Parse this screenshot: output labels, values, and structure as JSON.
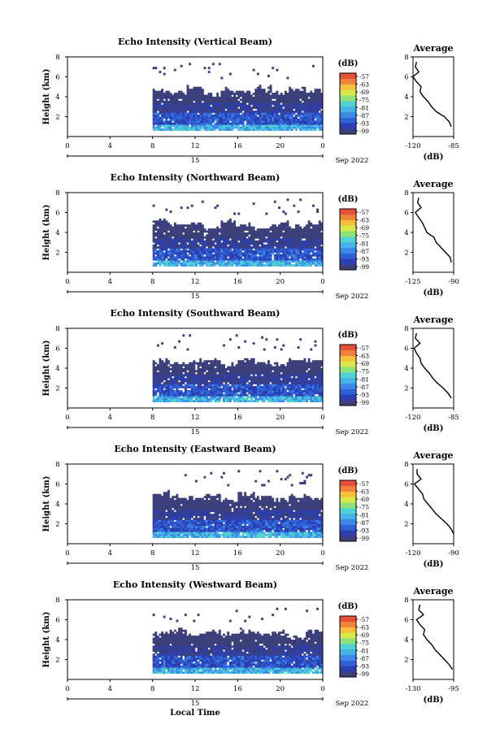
{
  "figure": {
    "xlabel": "Local Time",
    "date_label": "Sep 2022",
    "day_label": "15"
  },
  "chart_data": [
    {
      "type": "heatmap",
      "title": "Echo Intensity (Vertical Beam)",
      "ylabel": "Height (km)",
      "x_ticks": [
        "0",
        "4",
        "8",
        "12",
        "16",
        "20",
        "0"
      ],
      "y_ticks": [
        "2",
        "4",
        "6",
        "8"
      ],
      "xlim": [
        0,
        24
      ],
      "ylim": [
        0,
        8
      ],
      "data_start_hour": 8,
      "top_height_km": [
        4.5,
        4.3,
        4.8,
        4.1,
        4.6,
        4.4,
        4.9,
        4.2,
        4.7,
        4.5
      ],
      "colorbar": {
        "label": "(dB)",
        "ticks": [
          "-57",
          "-63",
          "-69",
          "-75",
          "-81",
          "-87",
          "-93",
          "-99"
        ]
      },
      "profile": {
        "title": "Average",
        "xlabel": "(dB)",
        "x_ticks": [
          "-120",
          "-85"
        ],
        "y_ticks": [
          "2",
          "4",
          "6",
          "8"
        ],
        "height_km": [
          1,
          1.5,
          2,
          2.5,
          3,
          3.5,
          4,
          4.5,
          5,
          5.5,
          6,
          6.5,
          7,
          7.5
        ],
        "value_db": [
          -87,
          -89,
          -93,
          -100,
          -104,
          -107,
          -111,
          -114,
          -113,
          -117,
          -120,
          -115,
          -118,
          -117
        ]
      }
    },
    {
      "type": "heatmap",
      "title": "Echo Intensity (Northward Beam)",
      "ylabel": "Height (km)",
      "x_ticks": [
        "0",
        "4",
        "8",
        "12",
        "16",
        "20",
        "0"
      ],
      "y_ticks": [
        "2",
        "4",
        "6",
        "8"
      ],
      "xlim": [
        0,
        24
      ],
      "ylim": [
        0,
        8
      ],
      "data_start_hour": 8,
      "top_height_km": [
        5.1,
        4.6,
        4.9,
        4.4,
        5.0,
        4.7,
        4.3,
        4.8,
        4.5,
        4.9
      ],
      "colorbar": {
        "label": "(dB)",
        "ticks": [
          "-57",
          "-63",
          "-69",
          "-75",
          "-81",
          "-87",
          "-93",
          "-99"
        ]
      },
      "profile": {
        "title": "Average",
        "xlabel": "(dB)",
        "x_ticks": [
          "-125",
          "-90"
        ],
        "y_ticks": [
          "2",
          "4",
          "6",
          "8"
        ],
        "height_km": [
          1,
          1.5,
          2,
          2.5,
          3,
          3.5,
          4,
          4.5,
          5,
          5.5,
          6,
          6.5,
          7,
          7.5
        ],
        "value_db": [
          -92,
          -93,
          -97,
          -101,
          -105,
          -107,
          -113,
          -115,
          -117,
          -120,
          -123,
          -118,
          -121,
          -120
        ]
      }
    },
    {
      "type": "heatmap",
      "title": "Echo Intensity (Southward Beam)",
      "ylabel": "Height (km)",
      "x_ticks": [
        "0",
        "4",
        "8",
        "12",
        "16",
        "20",
        "0"
      ],
      "y_ticks": [
        "2",
        "4",
        "6",
        "8"
      ],
      "xlim": [
        0,
        24
      ],
      "ylim": [
        0,
        8
      ],
      "data_start_hour": 8,
      "top_height_km": [
        4.8,
        4.4,
        4.6,
        4.9,
        4.2,
        4.7,
        4.5,
        4.3,
        4.8,
        4.6
      ],
      "colorbar": {
        "label": "(dB)",
        "ticks": [
          "-57",
          "-63",
          "-69",
          "-75",
          "-81",
          "-87",
          "-93",
          "-99"
        ]
      },
      "profile": {
        "title": "Average",
        "xlabel": "(dB)",
        "x_ticks": [
          "-120",
          "-85"
        ],
        "y_ticks": [
          "2",
          "4",
          "6",
          "8"
        ],
        "height_km": [
          1,
          1.5,
          2,
          2.5,
          3,
          3.5,
          4,
          4.5,
          5,
          5.5,
          6,
          6.5,
          7,
          7.5
        ],
        "value_db": [
          -87,
          -90,
          -94,
          -99,
          -103,
          -106,
          -110,
          -113,
          -114,
          -117,
          -119,
          -114,
          -118,
          -117
        ]
      }
    },
    {
      "type": "heatmap",
      "title": "Echo Intensity (Eastward Beam)",
      "ylabel": "Height (km)",
      "x_ticks": [
        "0",
        "4",
        "8",
        "12",
        "16",
        "20",
        "0"
      ],
      "y_ticks": [
        "2",
        "4",
        "6",
        "8"
      ],
      "xlim": [
        0,
        24
      ],
      "ylim": [
        0,
        8
      ],
      "data_start_hour": 8,
      "top_height_km": [
        5.0,
        4.7,
        4.5,
        4.8,
        4.4,
        4.9,
        4.6,
        4.3,
        4.7,
        4.5
      ],
      "colorbar": {
        "label": "(dB)",
        "ticks": [
          "-57",
          "-63",
          "-69",
          "-75",
          "-81",
          "-87",
          "-93",
          "-99"
        ]
      },
      "profile": {
        "title": "Average",
        "xlabel": "(dB)",
        "x_ticks": [
          "-120",
          "-90"
        ],
        "y_ticks": [
          "2",
          "4",
          "6",
          "8"
        ],
        "height_km": [
          1,
          1.5,
          2,
          2.5,
          3,
          3.5,
          4,
          4.5,
          5,
          5.5,
          6,
          6.5,
          7,
          7.5
        ],
        "value_db": [
          -90,
          -92,
          -95,
          -99,
          -103,
          -106,
          -109,
          -112,
          -113,
          -116,
          -119,
          -114,
          -117,
          -117
        ]
      }
    },
    {
      "type": "heatmap",
      "title": "Echo Intensity (Westward Beam)",
      "ylabel": "Height (km)",
      "x_ticks": [
        "0",
        "4",
        "8",
        "12",
        "16",
        "20",
        "0"
      ],
      "y_ticks": [
        "2",
        "4",
        "6",
        "8"
      ],
      "xlim": [
        0,
        24
      ],
      "ylim": [
        0,
        8
      ],
      "data_start_hour": 8,
      "top_height_km": [
        4.6,
        4.9,
        4.3,
        4.7,
        4.5,
        4.8,
        4.4,
        4.6,
        4.2,
        4.7
      ],
      "colorbar": {
        "label": "(dB)",
        "ticks": [
          "-57",
          "-63",
          "-69",
          "-75",
          "-81",
          "-87",
          "-93",
          "-99"
        ]
      },
      "profile": {
        "title": "Average",
        "xlabel": "(dB)",
        "x_ticks": [
          "-130",
          "-95"
        ],
        "y_ticks": [
          "2",
          "4",
          "6",
          "8"
        ],
        "height_km": [
          1,
          1.5,
          2,
          2.5,
          3,
          3.5,
          4,
          4.5,
          5,
          5.5,
          6,
          6.5,
          7,
          7.5
        ],
        "value_db": [
          -96,
          -99,
          -103,
          -107,
          -111,
          -114,
          -118,
          -121,
          -120,
          -124,
          -127,
          -121,
          -125,
          -124
        ]
      }
    }
  ],
  "colors": {
    "scale": [
      "#3b3f7a",
      "#2b3fb0",
      "#2f62d8",
      "#3c8ae6",
      "#45b2e8",
      "#4fd2d0",
      "#8fe07a",
      "#d8e84a",
      "#f6c03a",
      "#f0823a",
      "#e8503a"
    ]
  }
}
